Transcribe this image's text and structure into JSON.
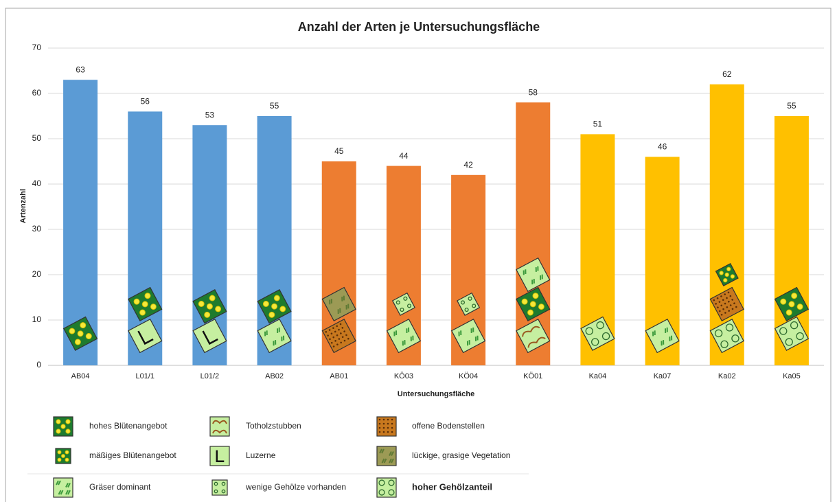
{
  "chart_data": {
    "type": "bar",
    "title": "Anzahl der Arten je Untersuchungsfläche",
    "x_label": "Untersuchungsfläche",
    "y_label": "Artenzahl",
    "categories": [
      "AB04",
      "L01/1",
      "L01/2",
      "AB02",
      "AB01",
      "KÖ03",
      "KÖ04",
      "KÖ01",
      "Ka04",
      "Ka07",
      "Ka02",
      "Ka05"
    ],
    "values": [
      63,
      56,
      53,
      55,
      45,
      44,
      42,
      58,
      51,
      46,
      62,
      55
    ],
    "colors": [
      "#5b9bd5",
      "#5b9bd5",
      "#5b9bd5",
      "#5b9bd5",
      "#ed7d31",
      "#ed7d31",
      "#ed7d31",
      "#ed7d31",
      "#ffc000",
      "#ffc000",
      "#ffc000",
      "#ffc000"
    ],
    "ylim": [
      0,
      70
    ],
    "yticks": [
      0,
      10,
      20,
      30,
      40,
      50,
      60,
      70
    ],
    "grid": true,
    "legend_items": [
      "hohes Blütenangebot",
      "mäßiges Blütenangebot",
      "Gräser dominant",
      "Totholzstubben",
      "Luzerne",
      "wenige Gehölze vorhanden",
      "offene Bodenstellen",
      "lückige, grasige Vegetation",
      "hoher Gehölzanteil"
    ]
  }
}
